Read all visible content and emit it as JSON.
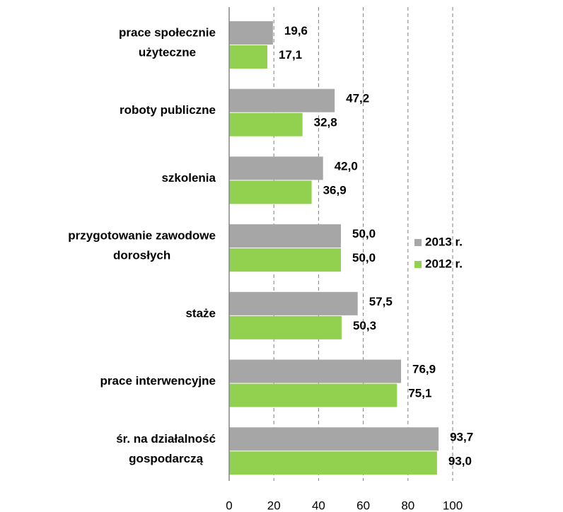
{
  "chart_data": {
    "type": "bar",
    "orientation": "horizontal",
    "categories": [
      [
        "prace społecznie",
        "użyteczne"
      ],
      [
        "roboty publiczne"
      ],
      [
        "szkolenia"
      ],
      [
        "przygotowanie zawodowe",
        "dorosłych"
      ],
      [
        "staże"
      ],
      [
        "prace interwencyjne"
      ],
      [
        "śr. na działalność",
        "gospodarczą"
      ]
    ],
    "series": [
      {
        "name": "2013 r.",
        "color": "#a6a6a6",
        "values": [
          19.6,
          47.2,
          42.0,
          50.0,
          57.5,
          76.9,
          93.7
        ],
        "value_labels": [
          "19,6",
          "47,2",
          "42,0",
          "50,0",
          "57,5",
          "76,9",
          "93,7"
        ]
      },
      {
        "name": "2012 r.",
        "color": "#92d050",
        "values": [
          17.1,
          32.8,
          36.9,
          50.0,
          50.3,
          75.1,
          93.0
        ],
        "value_labels": [
          "17,1",
          "32,8",
          "36,9",
          "50,0",
          "50,3",
          "75,1",
          "93,0"
        ]
      }
    ],
    "xlim": [
      0,
      100
    ],
    "xticks": [
      0,
      20,
      40,
      60,
      80,
      100
    ],
    "grid": true,
    "legend": "right"
  }
}
